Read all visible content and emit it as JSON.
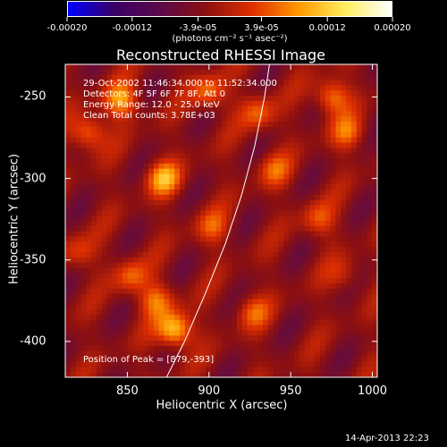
{
  "colorbar": {
    "tick_labels": [
      "-0.00020",
      "-0.00012",
      "-3.9e-05",
      "3.9e-05",
      "0.00012",
      "0.00020"
    ],
    "tick_values": [
      -0.0002,
      -0.00012,
      -3.9e-05,
      3.9e-05,
      0.00012,
      0.0002
    ],
    "range": [
      -0.0002,
      0.0002
    ],
    "units": "(photons cm⁻² s⁻¹ asec⁻²)",
    "colors": [
      "#0000ff",
      "#3a0066",
      "#5a0a4a",
      "#8c1010",
      "#e03000",
      "#ff9a00",
      "#ffee60",
      "#ffffff"
    ]
  },
  "chart_data": {
    "type": "heatmap",
    "title": "Reconstructed RHESSI Image",
    "xlabel": "Heliocentric X (arcsec)",
    "ylabel": "Heliocentric Y (arcsec)",
    "xlim": [
      812,
      1003
    ],
    "ylim": [
      -422,
      -230
    ],
    "x_ticks": [
      850,
      900,
      950,
      1000
    ],
    "y_ticks": [
      -250,
      -300,
      -350,
      -400
    ],
    "annotations": [
      "29-Oct-2002 11:46:34.000 to 11:52:34.000",
      "Detectors: 4F 5F 6F 7F 8F, Att 0",
      "Energy Range: 12.0 - 25.0 keV",
      "Clean    Total counts: 3.78E+03"
    ],
    "peak_label": "Position of Peak = [879,-393]",
    "peak": [
      879,
      -393
    ],
    "limb_curve": [
      [
        870,
        -430
      ],
      [
        885,
        -400
      ],
      [
        898,
        -370
      ],
      [
        910,
        -340
      ],
      [
        920,
        -310
      ],
      [
        928,
        -280
      ],
      [
        934,
        -250
      ],
      [
        937,
        -230
      ]
    ]
  },
  "timestamp": "14-Apr-2013 22:23"
}
